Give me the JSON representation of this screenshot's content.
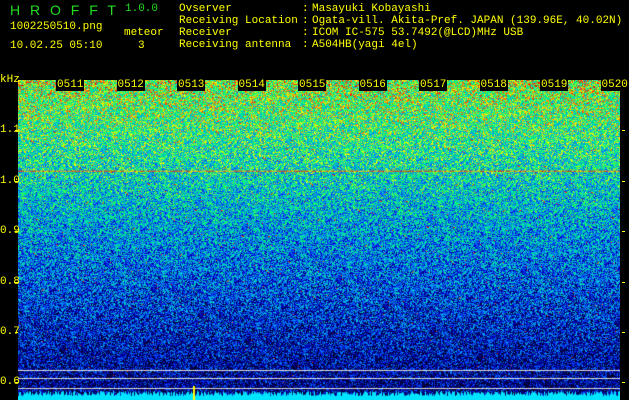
{
  "header": {
    "app_name": "H R O F F T",
    "version": "1.0.0",
    "filename": "1002250510.png",
    "datetime": "10.02.25 05:10",
    "meteor_label": "meteor",
    "meteor_count": "3",
    "info": [
      {
        "label": "Ovserver",
        "value": "Masayuki Kobayashi"
      },
      {
        "label": "Receiving Location",
        "value": "Ogata-vill. Akita-Pref. JAPAN (139.96E, 40.02N)"
      },
      {
        "label": "Receiver",
        "value": "ICOM IC-575 53.7492(@LCD)MHz USB"
      },
      {
        "label": "Receiving antenna",
        "value": "A504HB(yagi 4el)"
      }
    ]
  },
  "chart_data": {
    "type": "heatmap",
    "ylabel": "kHz",
    "x_ticks": [
      "0511",
      "0512",
      "0513",
      "0514",
      "0515",
      "0516",
      "0517",
      "0518",
      "0519",
      "0520"
    ],
    "y_ticks": [
      "1.1",
      "1.0",
      "0.9",
      "0.8",
      "0.7",
      "0.6"
    ],
    "ylim": [
      0.57,
      1.2
    ],
    "colormap": [
      "#000033",
      "#0000cc",
      "#0066ff",
      "#00cccc",
      "#00ff66",
      "#ffff00",
      "#ff0000"
    ],
    "carrier_line_khz": 1.02
  }
}
